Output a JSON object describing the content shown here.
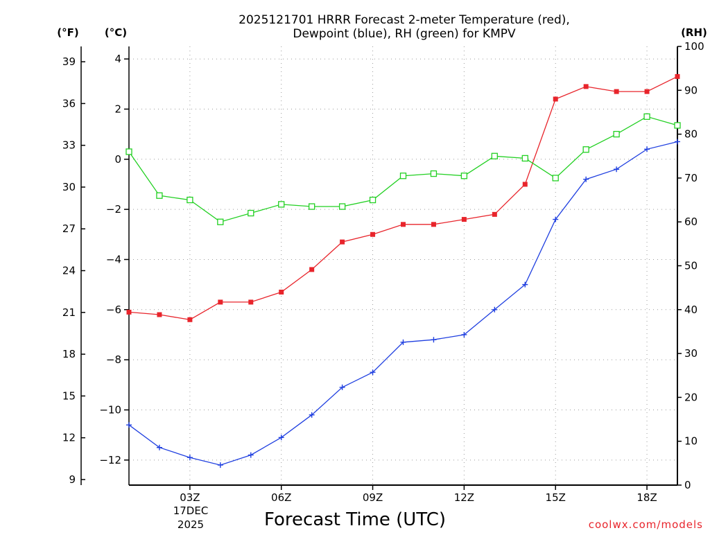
{
  "chart_data": {
    "type": "line",
    "title": [
      "2025121701 HRRR Forecast 2-meter Temperature (red),",
      "Dewpoint (blue), RH (green) for KMPV"
    ],
    "xlabel": "Forecast Time (UTC)",
    "date_label": [
      "17DEC",
      "2025"
    ],
    "credit": "coolwx.com/models",
    "axes": {
      "left_outer": {
        "unit": "(°F)",
        "range": [
          8.6,
          40.1
        ],
        "ticks": [
          9,
          12,
          15,
          18,
          21,
          24,
          27,
          30,
          33,
          36,
          39
        ]
      },
      "left_inner": {
        "unit": "(°C)",
        "range": [
          -13,
          4.5
        ],
        "ticks": [
          -12,
          -10,
          -8,
          -6,
          -4,
          -2,
          0,
          2,
          4
        ]
      },
      "right": {
        "unit": "(RH)",
        "range": [
          0,
          100
        ],
        "ticks": [
          0,
          10,
          20,
          30,
          40,
          50,
          60,
          70,
          80,
          90,
          100
        ]
      }
    },
    "x": {
      "range": [
        1,
        19
      ],
      "hours": [
        1,
        2,
        3,
        4,
        5,
        6,
        7,
        8,
        9,
        10,
        11,
        12,
        13,
        14,
        15,
        16,
        17,
        18,
        19
      ]
    },
    "xticks": [
      {
        "hour": 3,
        "label": "03Z"
      },
      {
        "hour": 6,
        "label": "06Z"
      },
      {
        "hour": 9,
        "label": "09Z"
      },
      {
        "hour": 12,
        "label": "12Z"
      },
      {
        "hour": 15,
        "label": "15Z"
      },
      {
        "hour": 18,
        "label": "18Z"
      }
    ],
    "grid": true,
    "series": [
      {
        "name": "Temperature",
        "axis": "left_inner",
        "color": "#e8242b",
        "marker": "filled-square",
        "values": [
          -6.1,
          -6.2,
          -6.4,
          -5.7,
          -5.7,
          -5.3,
          -4.4,
          -3.3,
          -3.0,
          -2.6,
          -2.6,
          -2.4,
          -2.2,
          -1.0,
          2.4,
          2.9,
          2.7,
          2.7,
          3.3
        ]
      },
      {
        "name": "Dewpoint",
        "axis": "left_inner",
        "color": "#1f3fe0",
        "marker": "plus",
        "values": [
          -10.6,
          -11.5,
          -11.9,
          -12.2,
          -11.8,
          -11.1,
          -10.2,
          -9.1,
          -8.5,
          -7.3,
          -7.2,
          -7.0,
          -6.0,
          -5.0,
          -2.4,
          -0.8,
          -0.4,
          0.4,
          0.7
        ]
      },
      {
        "name": "RH",
        "axis": "right",
        "color": "#22d022",
        "marker": "open-square",
        "values": [
          76,
          66,
          65,
          60,
          62,
          64,
          63.5,
          63.5,
          65,
          70.5,
          71,
          70.5,
          75,
          74.5,
          70,
          76.5,
          80,
          84,
          82
        ]
      }
    ]
  }
}
